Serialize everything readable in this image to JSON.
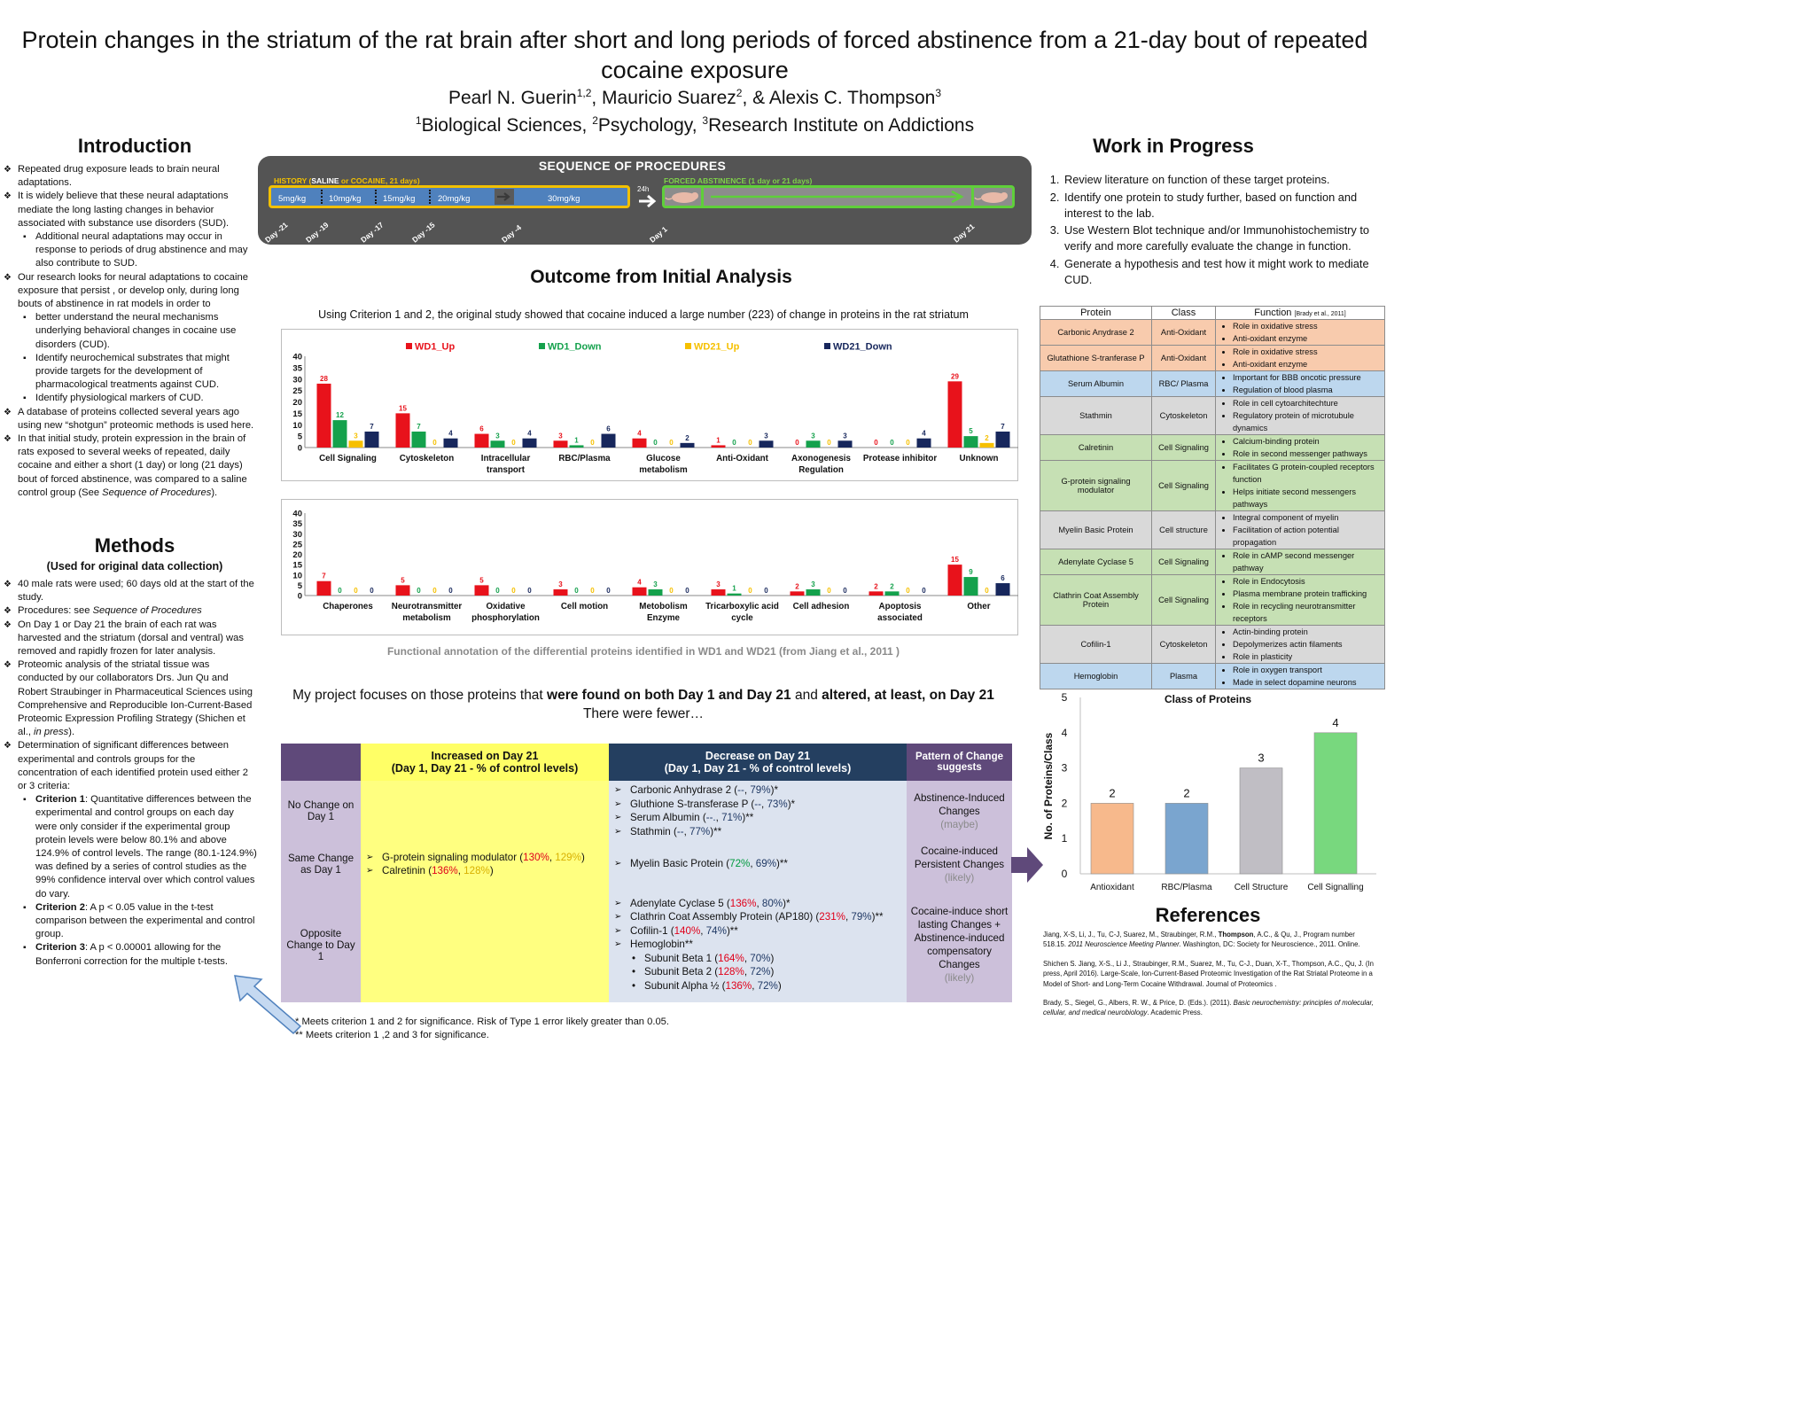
{
  "header": {
    "title": "Protein changes in the striatum of the rat brain after short and long periods of forced abstinence from a 21-day bout of repeated cocaine exposure",
    "authors": [
      {
        "name": "Pearl N. Guerin",
        "sup": "1,2",
        "sep": ", "
      },
      {
        "name": "Mauricio Suarez",
        "sup": "2",
        "sep": ", & "
      },
      {
        "name": "Alexis C. Thompson",
        "sup": "3",
        "sep": ""
      }
    ],
    "affiliations": [
      {
        "sup": "1",
        "name": "Biological Sciences, "
      },
      {
        "sup": "2",
        "name": "Psychology,  "
      },
      {
        "sup": "3",
        "name": "Research Institute on Addictions"
      }
    ]
  },
  "introduction": {
    "title": "Introduction",
    "items": [
      {
        "level": 1,
        "text": "Repeated drug exposure leads to brain neural adaptations."
      },
      {
        "level": 1,
        "text": "It is widely believe that these neural adaptations mediate the long lasting changes in behavior associated with substance use disorders (SUD)."
      },
      {
        "level": 2,
        "text": "Additional neural adaptations may occur in response to periods of drug abstinence and may also contribute to SUD."
      },
      {
        "level": 1,
        "text": "Our research looks for  neural  adaptations to cocaine exposure  that persist , or develop only, during long bouts of abstinence in rat models in order to"
      },
      {
        "level": 2,
        "text": "better understand the neural mechanisms underlying behavioral changes in cocaine use disorders  (CUD)."
      },
      {
        "level": 2,
        "text": "Identify neurochemical substrates that might provide targets for the development of pharmacological treatments against CUD."
      },
      {
        "level": 2,
        "text": "Identify physiological markers of CUD."
      },
      {
        "level": 1,
        "text": "A database of proteins collected several years ago using new “shotgun” proteomic methods is used here."
      },
      {
        "level": 1,
        "text": "In that initial study, protein expression in the brain of rats exposed to several weeks of repeated, daily cocaine and either a short (1 day) or long (21 days) bout of forced abstinence, was compared to a saline control group (See ",
        "em": "Sequence of Procedures",
        "after": ")."
      }
    ]
  },
  "methods": {
    "title": "Methods",
    "subtitle": "(Used for original data collection)",
    "items": [
      {
        "level": 1,
        "text": "40 male rats were used; 60 days old at the start of the study."
      },
      {
        "level": 1,
        "text": "Procedures: see ",
        "em": "Sequence of Procedures",
        "after": ""
      },
      {
        "level": 1,
        "text": "On Day 1 or Day 21 the brain of each rat was harvested and the striatum (dorsal and ventral) was removed and rapidly frozen for later analysis."
      },
      {
        "level": 1,
        "text": "Proteomic analysis of the striatal tissue was conducted by our collaborators Drs. Jun Qu and Robert Straubinger in Pharmaceutical Sciences using Comprehensive and Reproducible Ion-Current-Based Proteomic Expression Profiling Strategy (Shichen et al., ",
        "em": "in press",
        "after": ")."
      },
      {
        "level": 1,
        "text": "Determination of significant differences between experimental and controls groups for the concentration of each identified protein used either 2 or 3 criteria:"
      },
      {
        "level": 2,
        "strong": "Criterion 1",
        "text": ": Quantitative differences between the experimental and control groups on each day were only consider if the experimental group protein levels were below 80.1% and above 124.9% of control levels. The range (80.1-124.9%) was defined by a series of control studies as the 99% confidence interval over which control values do vary."
      },
      {
        "level": 2,
        "strong": "Criterion 2",
        "text": ": A p < 0.05 value in the t-test comparison between the experimental and control group."
      },
      {
        "level": 2,
        "strong": "Criterion 3",
        "text": ": A p < 0.00001 allowing for the Bonferroni correction for the multiple t-tests."
      }
    ]
  },
  "sequence": {
    "title": "SEQUENCE OF PROCEDURES",
    "history_prefix": "HISTORY (",
    "history_saline": "SALINE",
    "history_suffix": " or COCAINE, 21 days)",
    "doses": [
      "5mg/kg",
      "10mg/kg",
      "15mg/kg",
      "20mg/kg",
      "30mg/kg"
    ],
    "gap_label": "24h",
    "abstinence_label": "FORCED ABSTINENCE (1 day or 21 days)",
    "days": [
      "Day -21",
      "Day -19",
      "Day -17",
      "Day -15",
      "Day -4",
      "Day 1",
      "Day 21"
    ]
  },
  "outcome": {
    "title": "Outcome from Initial  Analysis",
    "intro": "Using Criterion 1 and 2, the original study showed  that cocaine induced a large number  (223) of change in proteins in the rat striatum",
    "caption": "Functional annotation of the differential proteins identified in WD1 and WD21 (from Jiang et al., 2011 )"
  },
  "focus": {
    "p1": "My project focuses on those proteins that ",
    "b1": "were found on both Day 1 and Day 21",
    "p2": " and ",
    "b2": "altered, at least, on Day 21",
    "line2": "There were fewer…"
  },
  "main_table": {
    "headers": {
      "increased_title": "Increased on Day 21",
      "increased_sub": "(Day 1, Day 21 - % of  control levels)",
      "decreased_title": "Decrease on Day 21",
      "decreased_sub": "(Day 1, Day 21 - % of control levels)",
      "pattern": "Pattern of Change suggests"
    },
    "rows": [
      {
        "label": "No Change on Day 1",
        "increased": [],
        "decreased": [
          {
            "name": "Carbonic Anhydrase 2 (",
            "d1": "--",
            "d21": "79%",
            "end": ")*"
          },
          {
            "name": "Gluthione S-transferase P (",
            "d1": "--",
            "d21": "73%",
            "end": ")*"
          },
          {
            "name": "Serum Albumin  (",
            "d1": "--.",
            "d21": "71%",
            "end": ")**"
          },
          {
            "name": "Stathmin (",
            "d1": "--",
            "d21": "77%",
            "end": ")**"
          }
        ],
        "pattern": "Abstinence-Induced Changes",
        "likelihood": "(maybe)"
      },
      {
        "label": "Same Change as Day 1",
        "increased": [
          {
            "name": "G-protein signaling modulator (",
            "d1": "130%",
            "d21": "129%",
            "end": ")"
          },
          {
            "name": "Calretinin (",
            "d1": "136%",
            "d21": "128%",
            "end": ")"
          }
        ],
        "decreased": [
          {
            "name": "Myelin Basic Protein (",
            "d1": "72%",
            "d21": "69%",
            "end": ")**"
          }
        ],
        "pattern": "Cocaine-induced Persistent Changes",
        "likelihood": "(likely)"
      },
      {
        "label": "Opposite Change to Day 1",
        "increased": [],
        "decreased": [
          {
            "name": "Adenylate Cyclase 5  (",
            "d1": "136%",
            "d21": "80%",
            "end": ")*"
          },
          {
            "name": "Clathrin Coat Assembly Protein (AP180) (",
            "d1": "231%",
            "d21": "79%",
            "end": ")**"
          },
          {
            "name": "Cofilin-1 (",
            "d1": "140%",
            "d21": "74%",
            "end": ")**"
          },
          {
            "name": "Hemoglobin**",
            "d1": "",
            "d21": "",
            "end": ""
          }
        ],
        "hemoglobin_subunits": [
          {
            "name": "Subunit Beta 1 (",
            "d1": "164%",
            "d21": "70%",
            "end": ")"
          },
          {
            "name": "Subunit Beta 2 (",
            "d1": "128%",
            "d21": "72%",
            "end": ")"
          },
          {
            "name": "Subunit Alpha ½ (",
            "d1": "136%",
            "d21": "72%",
            "end": ")"
          }
        ],
        "pattern": "Cocaine-induce short lasting Changes + Abstinence-induced compensatory Changes",
        "likelihood": "(likely)"
      }
    ],
    "notes": [
      "*   Meets criterion 1 and 2 for significance.  Risk of Type 1 error likely greater than 0.05.",
      "** Meets criterion 1 ,2 and 3 for significance."
    ]
  },
  "work_in_progress": {
    "title": "Work in Progress",
    "items": [
      "Review literature on function of these target proteins.",
      "Identify one protein to study further, based on function and interest to the lab.",
      "Use Western Blot technique and/or Immunohistochemistry to verify and more carefully evaluate the change in function.",
      "Generate a hypothesis and test how it might work to mediate CUD."
    ]
  },
  "protein_table": {
    "col_protein": "Protein",
    "col_class": "Class",
    "col_function": "Function",
    "col_function_ref": "[Brady et al., 2011]",
    "rows": [
      {
        "protein": "Carbonic Anydrase 2",
        "class": "Anti-Oxidant",
        "group": "anti",
        "functions": [
          "Role in oxidative stress",
          "Anti-oxidant enzyme"
        ]
      },
      {
        "protein": "Glutathione S-tranferase P",
        "class": "Anti-Oxidant",
        "group": "anti",
        "functions": [
          "Role in oxidative stress",
          "Anti-oxidant enzyme"
        ]
      },
      {
        "protein": "Serum Albumin",
        "class": "RBC/ Plasma",
        "group": "plasma",
        "functions": [
          "Important for BBB oncotic pressure",
          "Regulation of blood plasma"
        ]
      },
      {
        "protein": "Stathmin",
        "class": "Cytoskeleton",
        "group": "cyto",
        "functions": [
          "Role in cell cytoarchitechture",
          "Regulatory protein of microtubule dynamics"
        ]
      },
      {
        "protein": "Calretinin",
        "class": "Cell Signaling",
        "group": "sig",
        "functions": [
          "Calcium-binding protein",
          "Role in second messenger pathways"
        ]
      },
      {
        "protein": "G-protein signaling modulator",
        "class": "Cell Signaling",
        "group": "sig",
        "functions": [
          "Facilitates G protein-coupled receptors function",
          "Helps initiate second messengers pathways"
        ]
      },
      {
        "protein": "Myelin Basic Protein",
        "class": "Cell structure",
        "group": "cyto",
        "functions": [
          "Integral component of myelin",
          "Facilitation of action potential propagation"
        ]
      },
      {
        "protein": "Adenylate Cyclase 5",
        "class": "Cell Signaling",
        "group": "sig",
        "functions": [
          "Role in cAMP  second messenger pathway"
        ]
      },
      {
        "protein": "Clathrin Coat Assembly Protein",
        "class": "Cell Signaling",
        "group": "sig",
        "functions": [
          "Role in Endocytosis",
          "Plasma membrane protein trafficking",
          "Role in recycling  neurotransmitter receptors"
        ]
      },
      {
        "protein": "Cofilin-1",
        "class": "Cytoskeleton",
        "group": "cyto",
        "functions": [
          "Actin-binding protein",
          "Depolymerizes actin filaments",
          "Role in plasticity"
        ]
      },
      {
        "protein": "Hemoglobin",
        "class": "Plasma",
        "group": "plasma",
        "functions": [
          "Role in oxygen transport",
          "Made in select dopamine neurons"
        ]
      }
    ]
  },
  "references": {
    "title": "References",
    "items": [
      {
        "pre": "Jiang, X-S, Li, J., Tu, C-J, Suarez, M., Straubinger, R.M., ",
        "bold": "Thompson",
        "mid": ", A.C., & Qu, J., Program number 518.15. ",
        "em": "2011 Neuroscience Meeting Planner.",
        "post": " Washington, DC: Society for Neuroscience., 2011. Online."
      },
      {
        "pre": "Shichen S. Jiang, X-S., Li J., Straubinger, R.M., Suarez, M., Tu, C-J., Duan, X-T., Thompson, A.C., Qu, J. (In press, April 2016). Large-Scale, Ion-Current-Based Proteomic Investigation of the Rat Striatal Proteome in a Model of Short- and Long-Term Cocaine Withdrawal.  Journal of Proteomics .",
        "bold": "",
        "mid": "",
        "em": "",
        "post": ""
      },
      {
        "pre": "Brady, S., Siegel, G., Albers, R. W., & Price, D. (Eds.). (2011). ",
        "bold": "",
        "mid": "",
        "em": "Basic neurochemistry: principles of molecular, cellular, and medical neurobiology",
        "post": ". Academic Press."
      }
    ]
  },
  "colors": {
    "wd1_up": "#e8121b",
    "wd1_down": "#14a14c",
    "wd21_up": "#f6c000",
    "wd21_down": "#17275c",
    "antioxidant": "#f7b98c",
    "rbc_plasma": "#7aa5cf",
    "cell_structure": "#c0bec4",
    "cell_signalling": "#78d87e"
  },
  "chart_data": [
    {
      "type": "bar",
      "series": [
        {
          "name": "WD1_Up",
          "values": [
            28,
            15,
            6,
            3,
            4,
            1,
            0,
            0,
            29
          ]
        },
        {
          "name": "WD1_Down",
          "values": [
            12,
            7,
            3,
            1,
            0,
            0,
            3,
            0,
            5
          ]
        },
        {
          "name": "WD21_Up",
          "values": [
            3,
            0,
            0,
            0,
            0,
            0,
            0,
            0,
            2
          ]
        },
        {
          "name": "WD21_Down",
          "values": [
            7,
            4,
            4,
            6,
            2,
            3,
            3,
            4,
            7
          ]
        }
      ],
      "categories": [
        "Cell Signaling",
        "Cytoskeleton",
        "Intracellular transport",
        "RBC/Plasma",
        "Glucose metabolism",
        "Anti-Oxidant",
        "Axonogenesis Regulation",
        "Protease inhibitor",
        "Unknown"
      ],
      "yticks": [
        0,
        5,
        10,
        15,
        20,
        25,
        30,
        35,
        40
      ],
      "ylim": [
        0,
        40
      ],
      "legend": "top",
      "grid": false
    },
    {
      "type": "bar",
      "series": [
        {
          "name": "WD1_Up",
          "values": [
            7,
            5,
            5,
            3,
            4,
            3,
            2,
            2,
            15
          ]
        },
        {
          "name": "WD1_Down",
          "values": [
            0,
            0,
            0,
            0,
            3,
            1,
            3,
            2,
            9
          ]
        },
        {
          "name": "WD21_Up",
          "values": [
            0,
            0,
            0,
            0,
            0,
            0,
            0,
            0,
            0
          ]
        },
        {
          "name": "WD21_Down",
          "values": [
            0,
            0,
            0,
            0,
            0,
            0,
            0,
            0,
            6
          ]
        }
      ],
      "categories": [
        "Chaperones",
        "Neurotransmitter metabolism",
        "Oxidative phosphorylation",
        "Cell motion",
        "Metobolism Enzyme",
        "Tricarboxylic acid cycle",
        "Cell adhesion",
        "Apoptosis associated",
        "Other"
      ],
      "yticks": [
        0,
        5,
        10,
        15,
        20,
        25,
        30,
        35,
        40
      ],
      "ylim": [
        0,
        40
      ],
      "legend": "none",
      "grid": false
    },
    {
      "type": "bar",
      "title": "Class of Proteins",
      "ylabel": "No. of Proteins/Class",
      "categories": [
        "Antioxidant",
        "RBC/Plasma",
        "Cell Structure",
        "Cell Signalling"
      ],
      "values": [
        2,
        2,
        3,
        4
      ],
      "yticks": [
        0,
        1,
        2,
        3,
        4,
        5
      ],
      "ylim": [
        0,
        5
      ],
      "grid": false
    }
  ]
}
